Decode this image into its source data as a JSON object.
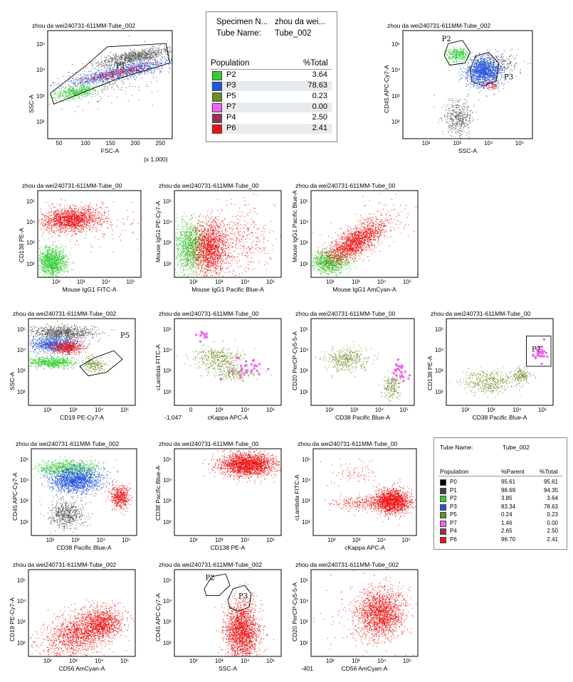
{
  "stats_table": {
    "specimen_label": "Specimen N...",
    "specimen_value": "zhou da wei...",
    "tube_label": "Tube Name:",
    "tube_value": "Tube_002",
    "col_population": "Population",
    "col_total": "%Total",
    "rows": [
      {
        "name": "P2",
        "total": "3.64",
        "color": "#33cc33"
      },
      {
        "name": "P3",
        "total": "78.63",
        "color": "#2255dd"
      },
      {
        "name": "P5",
        "total": "0.23",
        "color": "#6b8e23"
      },
      {
        "name": "P7",
        "total": "0.00",
        "color": "#ee66ee"
      },
      {
        "name": "P4",
        "total": "2.50",
        "color": "#993355"
      },
      {
        "name": "P6",
        "total": "2.41",
        "color": "#ee1111"
      }
    ]
  },
  "stats_table_2": {
    "tube_label": "Tube Name:",
    "tube_value": "Tube_002",
    "col_population": "Population",
    "col_parent": "%Parent",
    "col_total": "%Total",
    "rows": [
      {
        "name": "P0",
        "parent": "95.61",
        "total": "95.61",
        "color": "#000000"
      },
      {
        "name": "P1",
        "parent": "98.69",
        "total": "94.35",
        "color": "#444444"
      },
      {
        "name": "P2",
        "parent": "3.85",
        "total": "3.64",
        "color": "#33cc33"
      },
      {
        "name": "P3",
        "parent": "83.34",
        "total": "78.63",
        "color": "#2255dd"
      },
      {
        "name": "P5",
        "parent": "0.24",
        "total": "0.23",
        "color": "#6b8e23"
      },
      {
        "name": "P7",
        "parent": "1.46",
        "total": "0.00",
        "color": "#ee66ee"
      },
      {
        "name": "P4",
        "parent": "2.65",
        "total": "2.50",
        "color": "#993355"
      },
      {
        "name": "P6",
        "parent": "96.70",
        "total": "2.41",
        "color": "#ee1111"
      }
    ]
  },
  "chart_data": [
    {
      "id": "p1",
      "type": "scatter",
      "title": "zhou da wei240731-611MM-Tube_002",
      "xlabel": "FSC-A",
      "ylabel": "SSC-A",
      "xscale": "linear",
      "xticks": [
        "50",
        "100",
        "150",
        "200",
        "250"
      ],
      "xnote": "(x 1,000)",
      "yticks": [
        "10²",
        "10³",
        "10⁴",
        "10⁵"
      ],
      "gates": [
        {
          "name": "P1"
        }
      ],
      "series": [
        {
          "name": "P0",
          "color": "#555555"
        },
        {
          "name": "P3",
          "color": "#2255dd"
        },
        {
          "name": "P6",
          "color": "#ee1111"
        },
        {
          "name": "P2",
          "color": "#33cc33"
        }
      ]
    },
    {
      "id": "p2",
      "type": "scatter",
      "title": "zhou da wei240731-611MM-Tube_002",
      "xlabel": "SSC-A",
      "ylabel": "CD45 APC-Cy7-A",
      "xticks": [
        "10²",
        "10³",
        "10⁴",
        "10⁵"
      ],
      "yticks": [
        "10²",
        "10³",
        "10⁴",
        "10⁵"
      ],
      "gates": [
        {
          "name": "P2"
        },
        {
          "name": "P3"
        }
      ],
      "series": [
        {
          "name": "P0",
          "color": "#555555"
        },
        {
          "name": "P2",
          "color": "#33cc33"
        },
        {
          "name": "P3",
          "color": "#2255dd"
        },
        {
          "name": "P6",
          "color": "#ee1111"
        }
      ]
    },
    {
      "id": "p3",
      "type": "scatter",
      "title": "zhou da wei240731-611MM-Tube_00",
      "xlabel": "Mouse IgG1 FITC-A",
      "ylabel": "CD138 PE-A",
      "xticks": [
        "10²",
        "10³",
        "10⁴",
        "10⁵"
      ],
      "yticks": [
        "10²",
        "10³",
        "10⁴",
        "10⁵"
      ],
      "series": [
        {
          "name": "P2",
          "color": "#33cc33"
        },
        {
          "name": "P6",
          "color": "#ee1111"
        }
      ]
    },
    {
      "id": "p4",
      "type": "scatter",
      "title": "zhou da wei240731-611MM-Tube_00",
      "xlabel": "Mouse IgG1 Pacific Blue-A",
      "ylabel": "Mouse IgG1 PE-Cy7-A",
      "xticks": [
        "10²",
        "10³",
        "10⁴",
        "10⁵"
      ],
      "yticks": [
        "10²",
        "10³",
        "10⁴",
        "10⁵"
      ],
      "series": [
        {
          "name": "P2",
          "color": "#33cc33"
        },
        {
          "name": "P6",
          "color": "#ee1111"
        }
      ]
    },
    {
      "id": "p5",
      "type": "scatter",
      "title": "zhou da wei240731-611MM-Tube_00",
      "xlabel": "Mouse IgG1 AmCyan-A",
      "ylabel": "Mouse IgG1 Pacific Blue-A",
      "xticks": [
        "10²",
        "10³",
        "10⁴",
        "10⁵"
      ],
      "yticks": [
        "10²",
        "10³",
        "10⁴",
        "10⁵"
      ],
      "series": [
        {
          "name": "P2",
          "color": "#33cc33"
        },
        {
          "name": "P6",
          "color": "#ee1111"
        }
      ]
    },
    {
      "id": "p6",
      "type": "scatter",
      "title": "zhou da wei240731-611MM-Tube_002",
      "xlabel": "CD19 PE-Cy7-A",
      "ylabel": "SSC-A",
      "xticks": [
        "10²",
        "10³",
        "10⁴",
        "10⁵"
      ],
      "yticks": [
        "10²",
        "10³",
        "10⁴",
        "10⁵"
      ],
      "gates": [
        {
          "name": "P5"
        }
      ],
      "series": [
        {
          "name": "P0",
          "color": "#555555"
        },
        {
          "name": "P3",
          "color": "#2255dd"
        },
        {
          "name": "P6",
          "color": "#ee1111"
        },
        {
          "name": "P2",
          "color": "#33cc33"
        },
        {
          "name": "P5",
          "color": "#6b8e23"
        }
      ]
    },
    {
      "id": "p7",
      "type": "scatter",
      "title": "zhou da wei240731-611MM-Tube_00",
      "xlabel": "cKappa APC-A",
      "ylabel": "cLambda FITC-A",
      "xticks": [
        "0",
        "10³",
        "10⁴",
        "10⁵"
      ],
      "xnote": "-1,047",
      "yticks": [
        "10²",
        "10³",
        "10⁴",
        "10⁵"
      ],
      "series": [
        {
          "name": "P5",
          "color": "#6b8e23"
        },
        {
          "name": "P7",
          "color": "#ee66ee"
        }
      ]
    },
    {
      "id": "p8",
      "type": "scatter",
      "title": "zhou da wei240731-611MM-Tube_00",
      "xlabel": "CD38 Pacific Blue-A",
      "ylabel": "CD20 PerCP-Cy5-5-A",
      "xticks": [
        "10²",
        "10³",
        "10⁴",
        "10⁵"
      ],
      "yticks": [
        "10²",
        "10³",
        "10⁴",
        "10⁵"
      ],
      "series": [
        {
          "name": "P5",
          "color": "#6b8e23"
        },
        {
          "name": "P7",
          "color": "#ee66ee"
        }
      ]
    },
    {
      "id": "p9",
      "type": "scatter",
      "title": "zhou da wei240731-611MM-Tube_00",
      "xlabel": "CD38 Pacific Blue-A",
      "ylabel": "CD138 PE-A",
      "xticks": [
        "10²",
        "10³",
        "10⁴",
        "10⁵"
      ],
      "yticks": [
        "10²",
        "10³",
        "10⁴",
        "10⁵"
      ],
      "gates": [
        {
          "name": "P7"
        }
      ],
      "series": [
        {
          "name": "P5",
          "color": "#6b8e23"
        },
        {
          "name": "P7",
          "color": "#ee66ee"
        }
      ]
    },
    {
      "id": "p10",
      "type": "scatter",
      "title": "zhou da wei240731-611MM-Tube_002",
      "xlabel": "CD38 Pacific Blue-A",
      "ylabel": "CD45 APC-Cy7-A",
      "xticks": [
        "10²",
        "10³",
        "10⁴",
        "10⁵"
      ],
      "yticks": [
        "10²",
        "10³",
        "10⁴",
        "10⁵"
      ],
      "series": [
        {
          "name": "P0",
          "color": "#555555"
        },
        {
          "name": "P2",
          "color": "#33cc33"
        },
        {
          "name": "P3",
          "color": "#2255dd"
        },
        {
          "name": "P6",
          "color": "#ee1111"
        }
      ]
    },
    {
      "id": "p11",
      "type": "scatter",
      "title": "zhou da wei240731-611MM-Tube_00",
      "xlabel": "CD138 PE-A",
      "ylabel": "CD38 Pacific Blue-A",
      "xticks": [
        "10²",
        "10³",
        "10⁴",
        "10⁵"
      ],
      "yticks": [
        "10²",
        "10³",
        "10⁴",
        "10⁵"
      ],
      "series": [
        {
          "name": "P6",
          "color": "#ee1111"
        }
      ]
    },
    {
      "id": "p12",
      "type": "scatter",
      "title": "zhou da wei240731-611MM-Tube_00",
      "xlabel": "cKappa APC-A",
      "ylabel": "cLambda FITC-A",
      "xticks": [
        "10²",
        "10³",
        "10⁴",
        "10⁵"
      ],
      "yticks": [
        "10²",
        "10³",
        "10⁴",
        "10⁵"
      ],
      "series": [
        {
          "name": "P6",
          "color": "#ee1111"
        }
      ]
    },
    {
      "id": "p13",
      "type": "scatter",
      "title": "zhou da wei240731-611MM-Tube_002",
      "xlabel": "CD56 AmCyan-A",
      "ylabel": "CD19 PE-Cy7-A",
      "xticks": [
        "10²",
        "10³",
        "10⁴",
        "10⁵"
      ],
      "yticks": [
        "10²",
        "10³",
        "10⁴",
        "10⁵"
      ],
      "series": [
        {
          "name": "P6",
          "color": "#ee1111"
        }
      ]
    },
    {
      "id": "p14",
      "type": "scatter",
      "title": "zhou da wei240731-611MM-Tube_002",
      "xlabel": "SSC-A",
      "ylabel": "CD45 APC-Cy7-A",
      "xticks": [
        "10²",
        "10³",
        "10⁴",
        "10⁵"
      ],
      "yticks": [
        "10²",
        "10³",
        "10⁴",
        "10⁵"
      ],
      "gates": [
        {
          "name": "P2"
        },
        {
          "name": "P3"
        }
      ],
      "series": [
        {
          "name": "P6",
          "color": "#ee1111"
        }
      ]
    },
    {
      "id": "p15",
      "type": "scatter",
      "title": "zhou da wei240731-611MM-Tube_002",
      "xlabel": "CD56 AmCyan-A",
      "ylabel": "CD20 PerCP-Cy5-5-A",
      "xticks": [
        "10²",
        "10³",
        "10⁴",
        "10⁵"
      ],
      "xnote": "-401",
      "yticks": [
        "10²",
        "10³",
        "10⁴",
        "10⁵"
      ],
      "series": [
        {
          "name": "P6",
          "color": "#ee1111"
        }
      ]
    }
  ]
}
